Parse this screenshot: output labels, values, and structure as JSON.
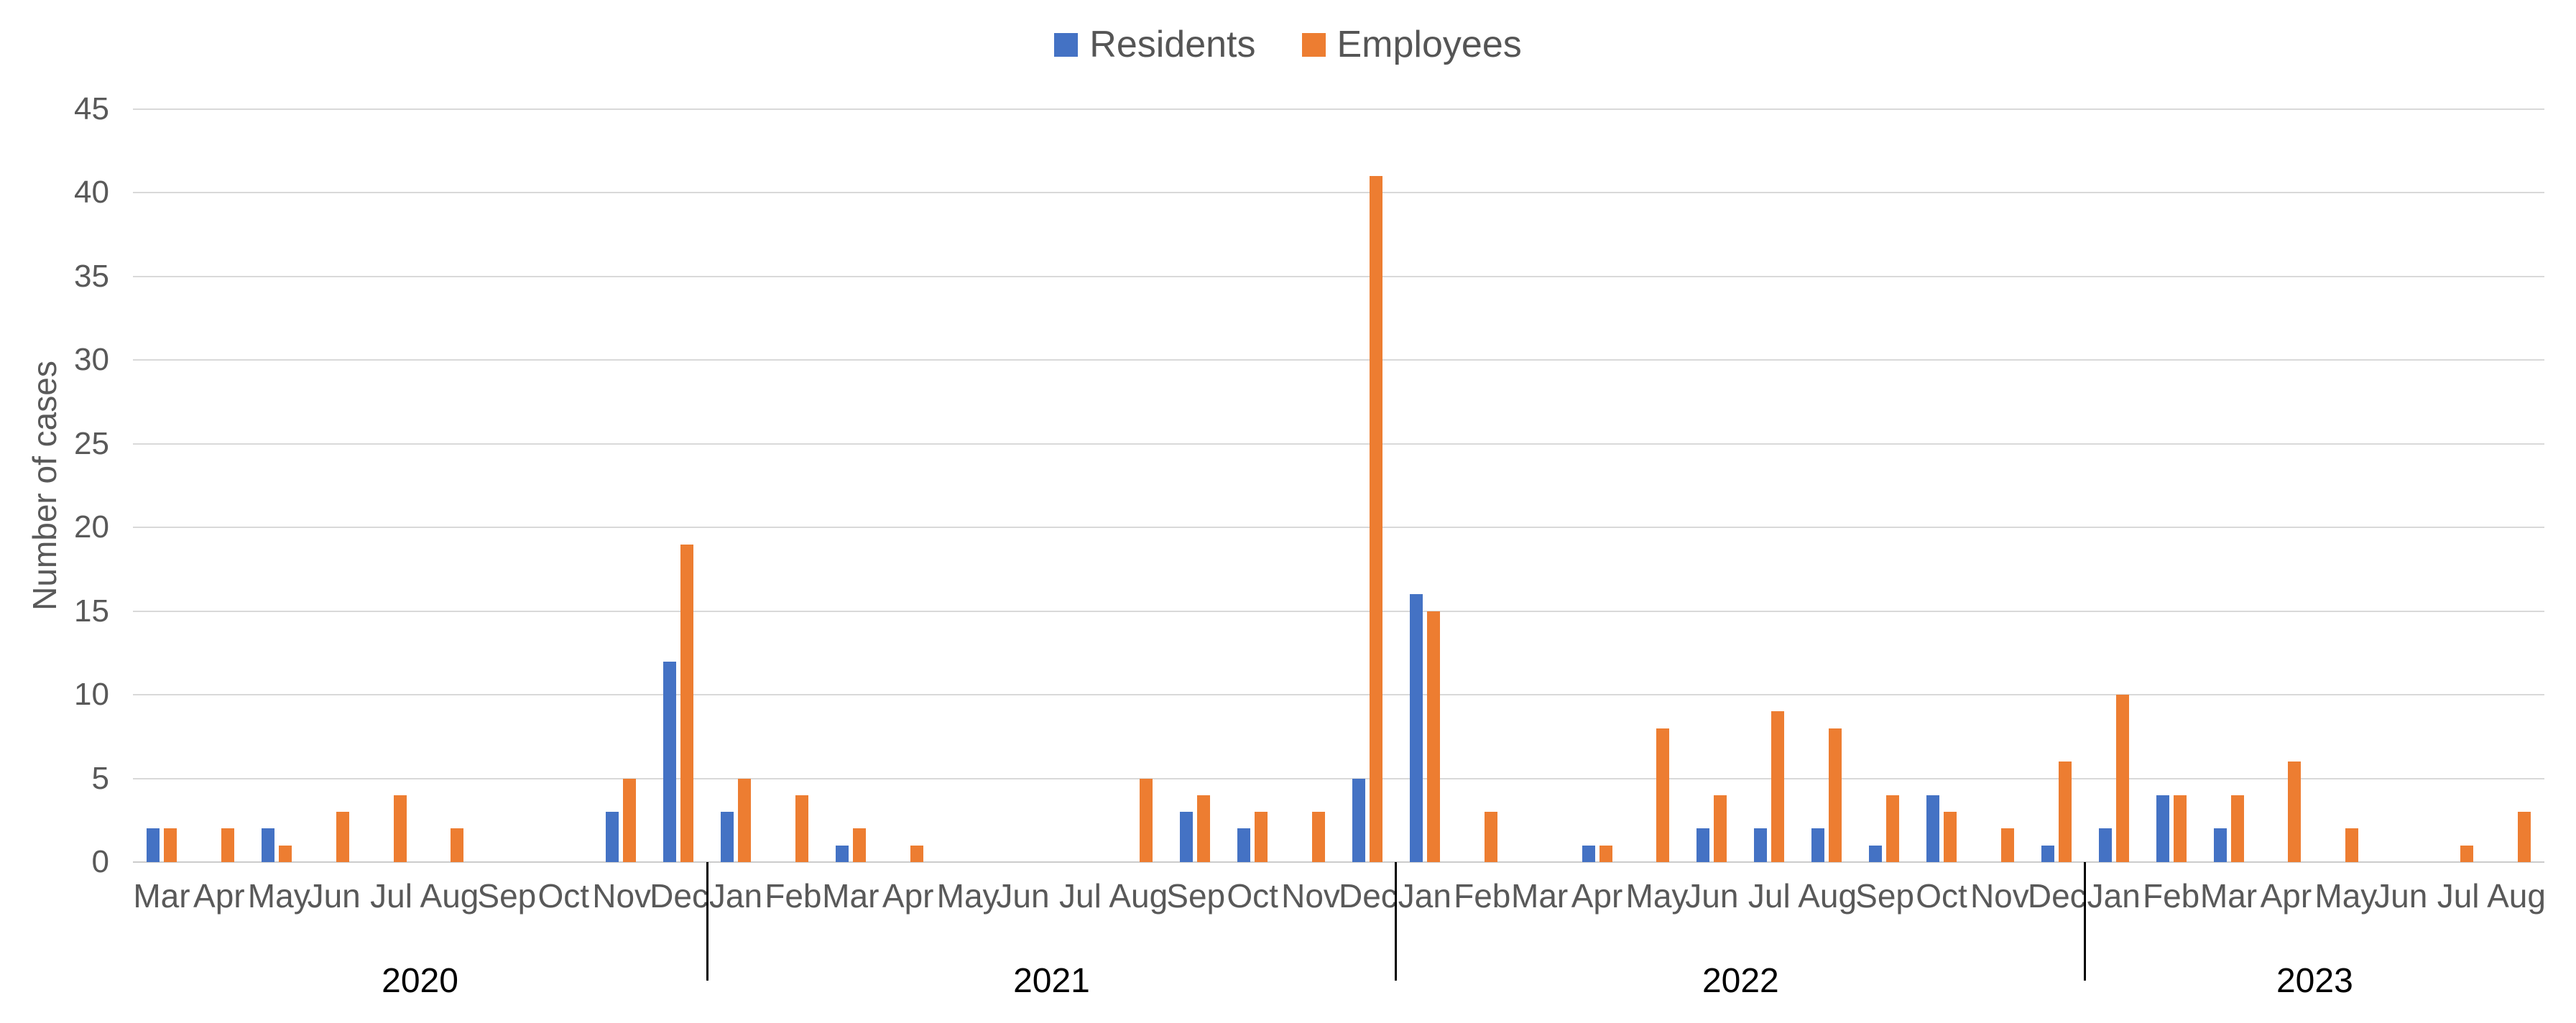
{
  "chart_data": {
    "type": "bar",
    "title": "",
    "ylabel": "Number of cases",
    "xlabel": "",
    "ylim": [
      0,
      45
    ],
    "yticks": [
      0,
      5,
      10,
      15,
      20,
      25,
      30,
      35,
      40,
      45
    ],
    "grid": true,
    "legend_position": "top-center",
    "categories": [
      "Mar",
      "Apr",
      "May",
      "Jun",
      "Jul",
      "Aug",
      "Sep",
      "Oct",
      "Nov",
      "Dec",
      "Jan",
      "Feb",
      "Mar",
      "Apr",
      "May",
      "Jun",
      "Jul",
      "Aug",
      "Sep",
      "Oct",
      "Nov",
      "Dec",
      "Jan",
      "Feb",
      "Mar",
      "Apr",
      "May",
      "Jun",
      "Jul",
      "Aug",
      "Sep",
      "Oct",
      "Nov",
      "Dec",
      "Jan",
      "Feb",
      "Mar",
      "Apr",
      "May",
      "Jun",
      "Jul",
      "Aug"
    ],
    "year_groups": [
      {
        "label": "2020",
        "start": 0,
        "count": 10
      },
      {
        "label": "2021",
        "start": 10,
        "count": 12
      },
      {
        "label": "2022",
        "start": 22,
        "count": 12
      },
      {
        "label": "2023",
        "start": 34,
        "count": 8
      }
    ],
    "series": [
      {
        "name": "Residents",
        "color": "#4472C4",
        "values": [
          2,
          0,
          2,
          0,
          0,
          0,
          0,
          0,
          3,
          12,
          3,
          0,
          1,
          0,
          0,
          0,
          0,
          0,
          3,
          2,
          0,
          5,
          16,
          0,
          0,
          1,
          0,
          2,
          2,
          2,
          1,
          4,
          0,
          1,
          2,
          4,
          2,
          0,
          0,
          0,
          0,
          0
        ]
      },
      {
        "name": "Employees",
        "color": "#ED7D31",
        "values": [
          2,
          2,
          1,
          3,
          4,
          2,
          0,
          0,
          5,
          19,
          5,
          4,
          2,
          1,
          0,
          0,
          0,
          5,
          4,
          3,
          3,
          41,
          15,
          3,
          0,
          1,
          8,
          4,
          9,
          8,
          4,
          3,
          2,
          6,
          10,
          4,
          4,
          6,
          2,
          0,
          1,
          3
        ]
      }
    ]
  },
  "colors": {
    "gridline": "#d9d9d9",
    "baseline": "#cccccc",
    "axis_text": "#595959",
    "legend_text": "#555555",
    "year_text": "#000000",
    "separator": "#000000",
    "background": "#ffffff"
  }
}
